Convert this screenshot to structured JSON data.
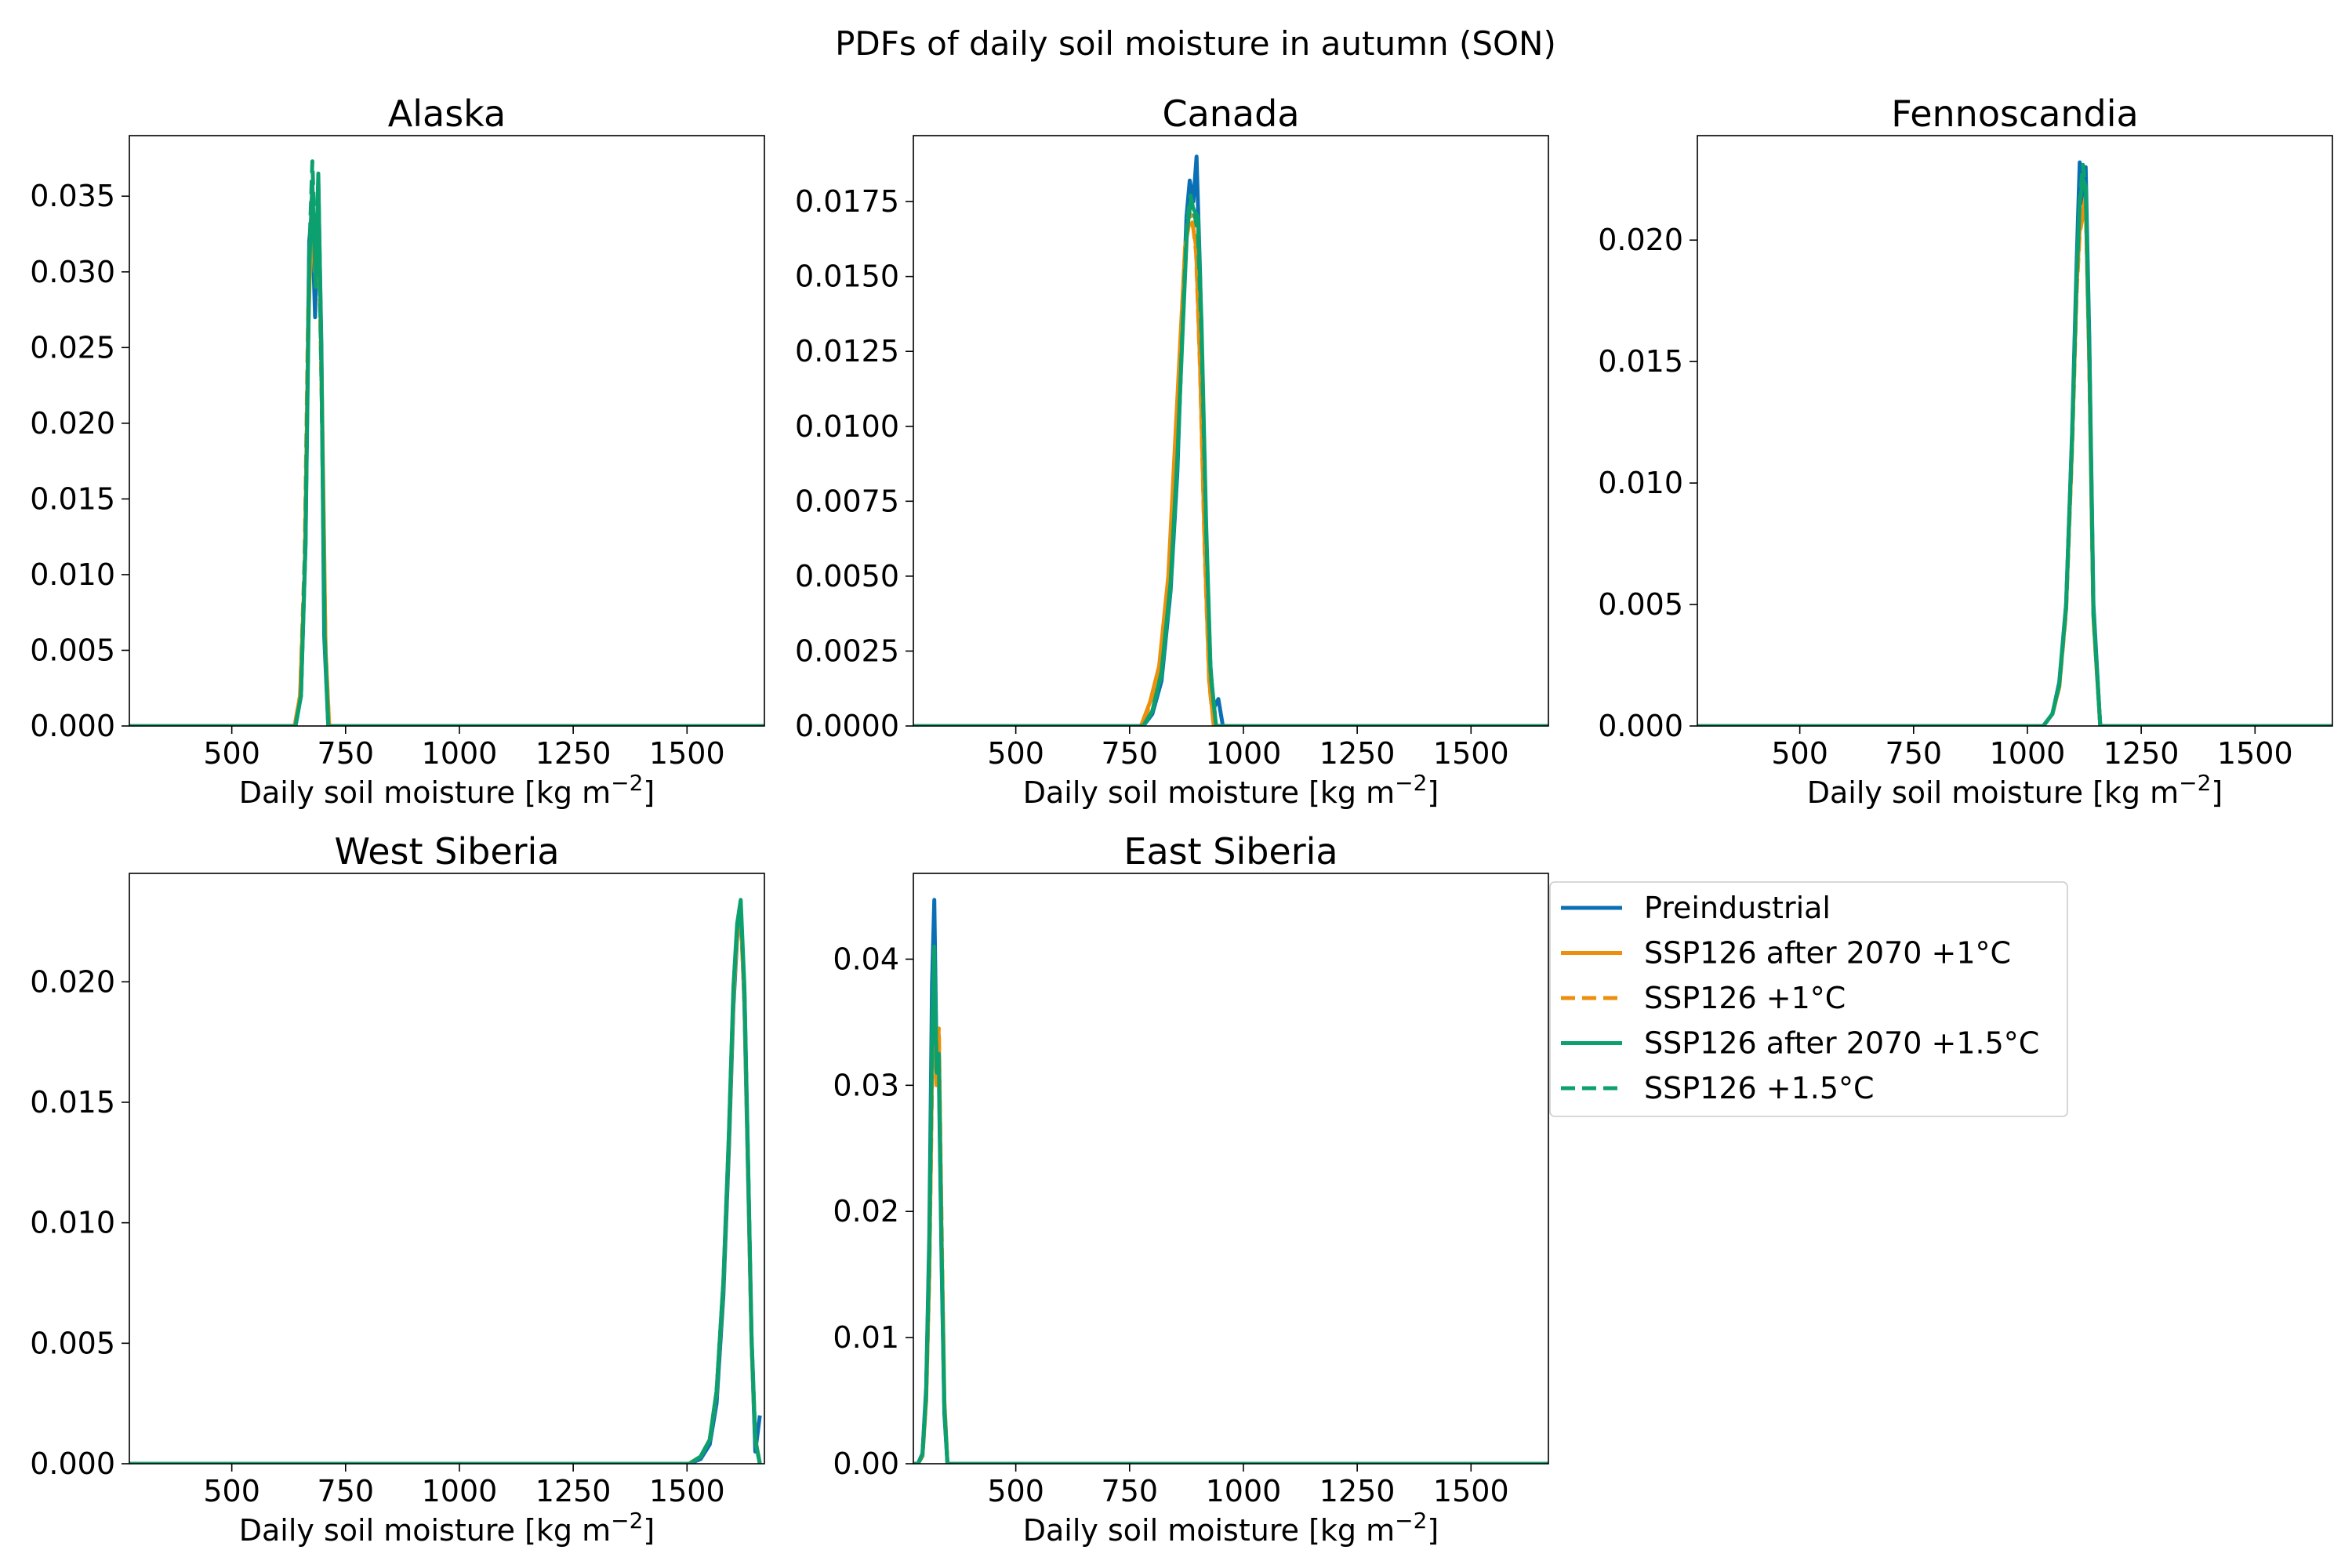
{
  "title": "PDFs of daily soil moisture in autumn (SON)",
  "colors": {
    "preindustrial": "#0a6fb5",
    "ssp_1": "#ec8f0b",
    "ssp_15": "#0da06f"
  },
  "legend": {
    "placement": "right of East Siberia panel",
    "entries": [
      {
        "label": "Preindustrial",
        "color": "#0a6fb5",
        "dash": false
      },
      {
        "label": "SSP126 after 2070 +1°C",
        "color": "#ec8f0b",
        "dash": false
      },
      {
        "label": "SSP126 +1°C",
        "color": "#ec8f0b",
        "dash": true
      },
      {
        "label": "SSP126 after 2070 +1.5°C",
        "color": "#0da06f",
        "dash": false
      },
      {
        "label": "SSP126 +1.5°C",
        "color": "#0da06f",
        "dash": true
      }
    ]
  },
  "chart_data": [
    {
      "type": "line",
      "title": "Alaska",
      "xlabel": "Daily soil moisture [kg m⁻²]",
      "ylabel": "",
      "xlim": [
        275,
        1670
      ],
      "ylim": [
        0,
        0.039
      ],
      "xticks": [
        500,
        750,
        1000,
        1250,
        1500
      ],
      "yticks": [
        "0.000",
        "0.005",
        "0.010",
        "0.015",
        "0.020",
        "0.025",
        "0.030",
        "0.035"
      ],
      "series": [
        {
          "name": "Preindustrial",
          "x": [
            275,
            640,
            652,
            662,
            670,
            676,
            683,
            690,
            697,
            703,
            712,
            1670
          ],
          "y": [
            0,
            0,
            0.002,
            0.012,
            0.032,
            0.034,
            0.027,
            0.036,
            0.025,
            0.006,
            0,
            0
          ]
        },
        {
          "name": "SSP126 after 2070 +1°C",
          "x": [
            275,
            638,
            650,
            660,
            668,
            675,
            682,
            690,
            698,
            706,
            714,
            1670
          ],
          "y": [
            0,
            0,
            0.002,
            0.01,
            0.026,
            0.034,
            0.03,
            0.035,
            0.022,
            0.005,
            0,
            0
          ]
        },
        {
          "name": "SSP126 +1°C",
          "x": [
            275,
            638,
            650,
            660,
            668,
            675,
            682,
            690,
            698,
            706,
            714,
            1670
          ],
          "y": [
            0,
            0,
            0.002,
            0.011,
            0.028,
            0.035,
            0.031,
            0.034,
            0.021,
            0.005,
            0,
            0
          ]
        },
        {
          "name": "SSP126 after 2070 +1.5°C",
          "x": [
            275,
            640,
            652,
            662,
            670,
            677,
            684,
            690,
            697,
            704,
            712,
            1670
          ],
          "y": [
            0,
            0,
            0.002,
            0.012,
            0.03,
            0.036,
            0.029,
            0.0365,
            0.024,
            0.006,
            0,
            0
          ]
        },
        {
          "name": "SSP126 +1.5°C",
          "x": [
            275,
            640,
            652,
            662,
            670,
            677,
            684,
            690,
            697,
            704,
            712,
            1670
          ],
          "y": [
            0,
            0,
            0.002,
            0.013,
            0.031,
            0.0373,
            0.031,
            0.035,
            0.023,
            0.006,
            0,
            0
          ]
        }
      ]
    },
    {
      "type": "line",
      "title": "Canada",
      "xlabel": "Daily soil moisture [kg m⁻²]",
      "ylabel": "",
      "xlim": [
        275,
        1670
      ],
      "ylim": [
        0,
        0.0197
      ],
      "xticks": [
        500,
        750,
        1000,
        1250,
        1500
      ],
      "yticks": [
        "0.0000",
        "0.0025",
        "0.0050",
        "0.0075",
        "0.0100",
        "0.0125",
        "0.0150",
        "0.0175"
      ],
      "series": [
        {
          "name": "Preindustrial",
          "x": [
            275,
            780,
            800,
            820,
            840,
            855,
            865,
            875,
            882,
            890,
            897,
            905,
            915,
            925,
            935,
            945,
            955,
            1670
          ],
          "y": [
            0,
            0,
            0.0004,
            0.0015,
            0.0045,
            0.0085,
            0.013,
            0.017,
            0.0182,
            0.0175,
            0.019,
            0.015,
            0.008,
            0.0025,
            0.0006,
            0.0009,
            0,
            0
          ]
        },
        {
          "name": "SSP126 after 2070 +1°C",
          "x": [
            275,
            775,
            795,
            815,
            835,
            850,
            862,
            872,
            880,
            888,
            896,
            905,
            915,
            925,
            935,
            1670
          ],
          "y": [
            0,
            0,
            0.0008,
            0.002,
            0.005,
            0.0095,
            0.013,
            0.016,
            0.0167,
            0.0168,
            0.016,
            0.012,
            0.006,
            0.0015,
            0,
            0
          ]
        },
        {
          "name": "SSP126 +1°C",
          "x": [
            275,
            775,
            795,
            815,
            835,
            850,
            862,
            872,
            880,
            888,
            896,
            905,
            915,
            925,
            935,
            1670
          ],
          "y": [
            0,
            0,
            0.0007,
            0.0019,
            0.0048,
            0.009,
            0.0128,
            0.0158,
            0.0172,
            0.0169,
            0.0158,
            0.0118,
            0.0058,
            0.0014,
            0,
            0
          ]
        },
        {
          "name": "SSP126 after 2070 +1.5°C",
          "x": [
            275,
            780,
            800,
            820,
            840,
            855,
            866,
            876,
            884,
            892,
            900,
            908,
            918,
            928,
            940,
            1670
          ],
          "y": [
            0,
            0,
            0.0005,
            0.0018,
            0.0048,
            0.009,
            0.013,
            0.0165,
            0.0175,
            0.0172,
            0.017,
            0.0135,
            0.0068,
            0.0018,
            0,
            0
          ]
        },
        {
          "name": "SSP126 +1.5°C",
          "x": [
            275,
            780,
            800,
            820,
            840,
            855,
            866,
            876,
            884,
            892,
            900,
            908,
            918,
            928,
            940,
            1670
          ],
          "y": [
            0,
            0,
            0.0005,
            0.0017,
            0.0046,
            0.0088,
            0.0132,
            0.0168,
            0.0177,
            0.0171,
            0.0165,
            0.013,
            0.0065,
            0.0017,
            0,
            0
          ]
        }
      ]
    },
    {
      "type": "line",
      "title": "Fennoscandia",
      "xlabel": "Daily soil moisture [kg m⁻²]",
      "ylabel": "",
      "xlim": [
        275,
        1670
      ],
      "ylim": [
        0,
        0.0243
      ],
      "xticks": [
        500,
        750,
        1000,
        1250,
        1500
      ],
      "yticks": [
        "0.000",
        "0.005",
        "0.010",
        "0.015",
        "0.020"
      ],
      "series": [
        {
          "name": "Preindustrial",
          "x": [
            275,
            1035,
            1055,
            1070,
            1085,
            1098,
            1108,
            1115,
            1122,
            1128,
            1136,
            1145,
            1160,
            1670
          ],
          "y": [
            0,
            0,
            0.0005,
            0.0018,
            0.005,
            0.012,
            0.019,
            0.0232,
            0.0215,
            0.023,
            0.016,
            0.005,
            0,
            0
          ]
        },
        {
          "name": "SSP126 after 2070 +1°C",
          "x": [
            275,
            1035,
            1055,
            1070,
            1085,
            1098,
            1108,
            1115,
            1122,
            1128,
            1136,
            1145,
            1160,
            1670
          ],
          "y": [
            0,
            0,
            0.0005,
            0.0016,
            0.0048,
            0.0115,
            0.018,
            0.0205,
            0.0212,
            0.0218,
            0.015,
            0.0045,
            0,
            0
          ]
        },
        {
          "name": "SSP126 +1°C",
          "x": [
            275,
            1035,
            1055,
            1070,
            1085,
            1098,
            1108,
            1115,
            1122,
            1128,
            1136,
            1145,
            1160,
            1670
          ],
          "y": [
            0,
            0,
            0.0005,
            0.0016,
            0.0047,
            0.0113,
            0.0178,
            0.0203,
            0.021,
            0.0215,
            0.0148,
            0.0044,
            0,
            0
          ]
        },
        {
          "name": "SSP126 after 2070 +1.5°C",
          "x": [
            275,
            1035,
            1055,
            1070,
            1085,
            1098,
            1108,
            1115,
            1122,
            1128,
            1136,
            1145,
            1160,
            1670
          ],
          "y": [
            0,
            0,
            0.0005,
            0.0017,
            0.0049,
            0.0118,
            0.0185,
            0.0215,
            0.0225,
            0.0222,
            0.0155,
            0.0047,
            0,
            0
          ]
        },
        {
          "name": "SSP126 +1.5°C",
          "x": [
            275,
            1035,
            1055,
            1070,
            1085,
            1098,
            1108,
            1115,
            1122,
            1128,
            1136,
            1145,
            1160,
            1670
          ],
          "y": [
            0,
            0,
            0.0005,
            0.0017,
            0.0049,
            0.0117,
            0.0184,
            0.0216,
            0.0231,
            0.0221,
            0.0153,
            0.0046,
            0,
            0
          ]
        }
      ]
    },
    {
      "type": "line",
      "title": "West Siberia",
      "xlabel": "Daily soil moisture [kg m⁻²]",
      "ylabel": "",
      "xlim": [
        275,
        1670
      ],
      "ylim": [
        0,
        0.0245
      ],
      "xticks": [
        500,
        750,
        1000,
        1250,
        1500
      ],
      "yticks": [
        "0.000",
        "0.005",
        "0.010",
        "0.015",
        "0.020"
      ],
      "series": [
        {
          "name": "Preindustrial",
          "x": [
            275,
            1505,
            1530,
            1550,
            1565,
            1580,
            1592,
            1602,
            1610,
            1618,
            1626,
            1634,
            1642,
            1650,
            1660
          ],
          "y": [
            0,
            0,
            0.0002,
            0.0008,
            0.0025,
            0.007,
            0.013,
            0.019,
            0.0218,
            0.0232,
            0.019,
            0.012,
            0.005,
            0.0005,
            0.002
          ]
        },
        {
          "name": "SSP126 after 2070 +1°C",
          "x": [
            275,
            1505,
            1530,
            1550,
            1565,
            1580,
            1592,
            1602,
            1610,
            1618,
            1626,
            1634,
            1642,
            1650,
            1660
          ],
          "y": [
            0,
            0,
            0.0003,
            0.001,
            0.003,
            0.0075,
            0.0135,
            0.0195,
            0.022,
            0.0228,
            0.0195,
            0.0125,
            0.005,
            0.001,
            0
          ]
        },
        {
          "name": "SSP126 +1°C",
          "x": [
            275,
            1505,
            1530,
            1550,
            1565,
            1580,
            1592,
            1602,
            1610,
            1618,
            1626,
            1634,
            1642,
            1650,
            1660
          ],
          "y": [
            0,
            0,
            0.0003,
            0.001,
            0.0029,
            0.0074,
            0.0134,
            0.0193,
            0.0219,
            0.0226,
            0.0193,
            0.0124,
            0.005,
            0.001,
            0
          ]
        },
        {
          "name": "SSP126 after 2070 +1.5°C",
          "x": [
            275,
            1505,
            1530,
            1550,
            1565,
            1580,
            1592,
            1602,
            1610,
            1618,
            1626,
            1634,
            1642,
            1650,
            1660
          ],
          "y": [
            0,
            0,
            0.0003,
            0.001,
            0.003,
            0.0076,
            0.0137,
            0.0198,
            0.0224,
            0.0234,
            0.0198,
            0.0127,
            0.0052,
            0.001,
            0
          ]
        },
        {
          "name": "SSP126 +1.5°C",
          "x": [
            275,
            1505,
            1530,
            1550,
            1565,
            1580,
            1592,
            1602,
            1610,
            1618,
            1626,
            1634,
            1642,
            1650,
            1660
          ],
          "y": [
            0,
            0,
            0.0003,
            0.001,
            0.003,
            0.0075,
            0.0136,
            0.0196,
            0.0222,
            0.0231,
            0.0196,
            0.0126,
            0.0051,
            0.001,
            0
          ]
        }
      ]
    },
    {
      "type": "line",
      "title": "East Siberia",
      "xlabel": "Daily soil moisture [kg m⁻²]",
      "ylabel": "",
      "xlim": [
        275,
        1670
      ],
      "ylim": [
        0,
        0.0468
      ],
      "xticks": [
        500,
        750,
        1000,
        1250,
        1500
      ],
      "yticks": [
        "0.00",
        "0.01",
        "0.02",
        "0.03",
        "0.04"
      ],
      "series": [
        {
          "name": "Preindustrial",
          "x": [
            275,
            285,
            295,
            303,
            310,
            316,
            321,
            326,
            331,
            337,
            343,
            350,
            360,
            1670
          ],
          "y": [
            0,
            0,
            0.0008,
            0.006,
            0.018,
            0.038,
            0.0447,
            0.032,
            0.031,
            0.016,
            0.004,
            0,
            0,
            0
          ]
        },
        {
          "name": "SSP126 after 2070 +1°C",
          "x": [
            275,
            285,
            295,
            303,
            310,
            316,
            321,
            326,
            331,
            337,
            343,
            350,
            360,
            1670
          ],
          "y": [
            0,
            0,
            0.0006,
            0.005,
            0.015,
            0.031,
            0.036,
            0.03,
            0.034,
            0.018,
            0.005,
            0,
            0,
            0
          ]
        },
        {
          "name": "SSP126 +1°C",
          "x": [
            275,
            285,
            295,
            303,
            310,
            316,
            321,
            326,
            331,
            337,
            343,
            350,
            360,
            1670
          ],
          "y": [
            0,
            0,
            0.0006,
            0.005,
            0.015,
            0.03,
            0.035,
            0.031,
            0.0345,
            0.019,
            0.005,
            0,
            0,
            0
          ]
        },
        {
          "name": "SSP126 after 2070 +1.5°C",
          "x": [
            275,
            285,
            295,
            303,
            310,
            316,
            321,
            326,
            331,
            337,
            343,
            350,
            360,
            1670
          ],
          "y": [
            0,
            0,
            0.0007,
            0.0055,
            0.017,
            0.034,
            0.041,
            0.031,
            0.032,
            0.017,
            0.0045,
            0,
            0,
            0
          ]
        },
        {
          "name": "SSP126 +1.5°C",
          "x": [
            275,
            285,
            295,
            303,
            310,
            316,
            321,
            326,
            331,
            337,
            343,
            350,
            360,
            1670
          ],
          "y": [
            0,
            0,
            0.0007,
            0.0055,
            0.0165,
            0.033,
            0.04,
            0.032,
            0.0325,
            0.017,
            0.0045,
            0,
            0,
            0
          ]
        }
      ]
    }
  ]
}
